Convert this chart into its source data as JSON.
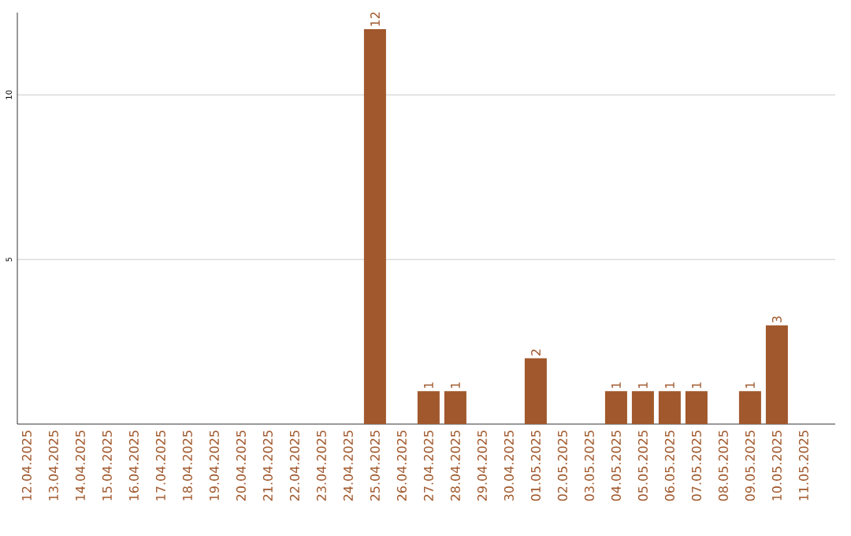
{
  "chart_data": {
    "type": "bar",
    "categories": [
      "12.04.2025",
      "13.04.2025",
      "14.04.2025",
      "15.04.2025",
      "16.04.2025",
      "17.04.2025",
      "18.04.2025",
      "19.04.2025",
      "20.04.2025",
      "21.04.2025",
      "22.04.2025",
      "23.04.2025",
      "24.04.2025",
      "25.04.2025",
      "26.04.2025",
      "27.04.2025",
      "28.04.2025",
      "29.04.2025",
      "30.04.2025",
      "01.05.2025",
      "02.05.2025",
      "03.05.2025",
      "04.05.2025",
      "05.05.2025",
      "06.05.2025",
      "07.05.2025",
      "08.05.2025",
      "09.05.2025",
      "10.05.2025",
      "11.05.2025"
    ],
    "values": [
      0,
      0,
      0,
      0,
      0,
      0,
      0,
      0,
      0,
      0,
      0,
      0,
      0,
      12,
      0,
      1,
      1,
      0,
      0,
      2,
      0,
      0,
      1,
      1,
      1,
      1,
      0,
      1,
      3,
      0
    ],
    "value_labels": [
      null,
      null,
      null,
      null,
      null,
      null,
      null,
      null,
      null,
      null,
      null,
      null,
      null,
      "12",
      null,
      "1",
      "1",
      null,
      null,
      "2",
      null,
      null,
      "1",
      "1",
      "1",
      "1",
      null,
      "1",
      "3",
      null
    ],
    "color": "#a0582c",
    "ylim": [
      0,
      12.5
    ],
    "yticks": [
      5,
      10
    ],
    "grid": "y"
  }
}
